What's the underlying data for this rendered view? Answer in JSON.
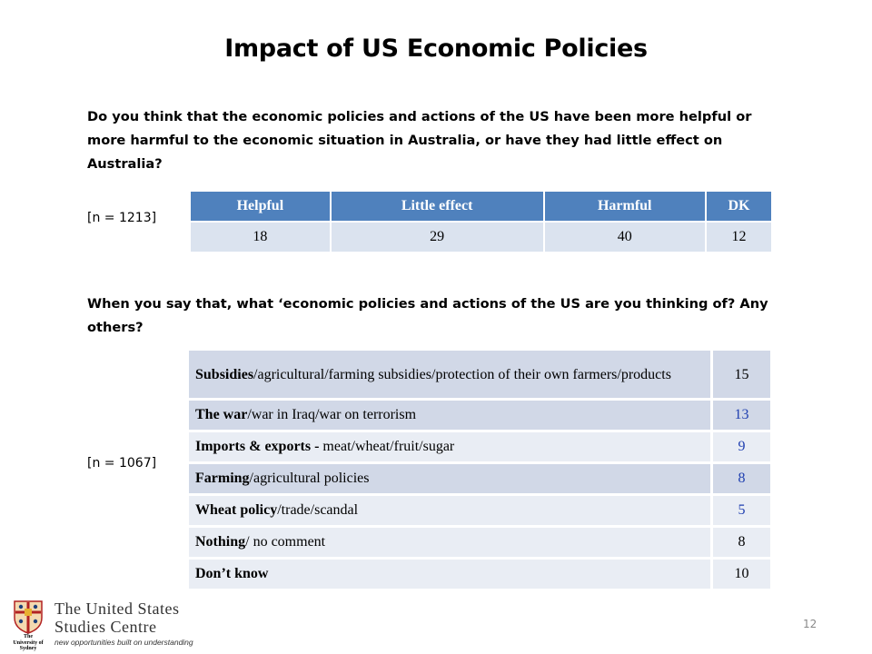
{
  "title": "Impact of US Economic Policies",
  "question1": "Do you think that the economic policies and actions of the US have been more helpful or more harmful to the economic situation in Australia, or have they had little effect on Australia?",
  "n1": "[n = 1213]",
  "table1": {
    "headers": [
      "Helpful",
      "Little effect",
      "Harmful",
      "DK"
    ],
    "values": [
      "18",
      "29",
      "40",
      "12"
    ]
  },
  "question2": "When you say that, what ‘economic policies and actions of the US are you thinking of? Any others?",
  "n2": "[n = 1067]",
  "table2": [
    {
      "bold": "Subsidies",
      "rest": "/agricultural/farming subsidies/protection of their own farmers/products",
      "value": "15"
    },
    {
      "bold": "The war",
      "rest": "/war in Iraq/war on terrorism",
      "value": "13"
    },
    {
      "bold": "Imports & exports - ",
      "rest": "meat/wheat/fruit/sugar",
      "value": "9"
    },
    {
      "bold": "Farming",
      "rest": "/agricultural policies",
      "value": "8"
    },
    {
      "bold": "Wheat policy",
      "rest": "/trade/scandal",
      "value": "5"
    },
    {
      "bold": "Nothing",
      "rest": "/ no comment",
      "value": "8"
    },
    {
      "bold": "Don’t know",
      "rest": "",
      "value": "10"
    }
  ],
  "logo": {
    "crest_text": "The University of Sydney",
    "line1": "The United States",
    "line2": "Studies Centre",
    "tagline": "new opportunities built on understanding"
  },
  "page_number": "12",
  "colors": {
    "header_blue": "#4f81bd",
    "cell_light": "#dbe3ef",
    "row_light": "#e9edf4",
    "row_dark": "#d1d8e7",
    "value_blue": "#1f3fb0"
  }
}
